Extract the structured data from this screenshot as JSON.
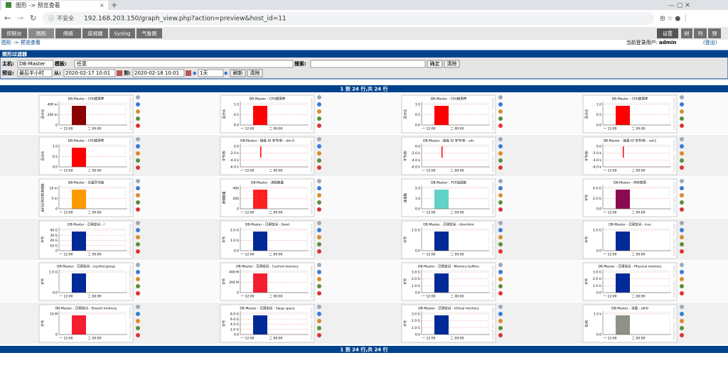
{
  "browser": {
    "tab_title": "图形 -> 预览查看",
    "insecure": "不安全",
    "url": "192.168.203.150/graph_view.php?action=preview&host_id=11"
  },
  "nav": {
    "tabs": [
      "控制台",
      "图形",
      "阈值",
      "监视器",
      "Syslog",
      "气象图"
    ],
    "right_tabs": [
      "设置",
      "树",
      "列",
      "预"
    ]
  },
  "breadcrumb": {
    "path": "图形 -> 预览查看",
    "user_label": "当前登录用户:",
    "user": "admin",
    "logout": "(登出)"
  },
  "filter": {
    "title": "图形过滤器",
    "host_label": "主机:",
    "host": "DB-Master",
    "template_label": "模板:",
    "template": "任意",
    "search_label": "搜索:",
    "go": "确定",
    "clear": "清除",
    "preset_label": "预设:",
    "preset": "最后半小时",
    "from_label": "从:",
    "from": "2020-02-17 10:01",
    "to_label": "到:",
    "to": "2020-02-18 10:01",
    "span": "1天",
    "refresh": "刷新",
    "clear2": "清除"
  },
  "pager": "1 到 24 行,共 24 行",
  "xticks": [
    "一 12:00",
    "二 00:00"
  ],
  "watermark": "RRDTOOL / TOBI OETIKER",
  "graphs": [
    {
      "title": "DB-Master - CPU使用率",
      "ylabel": "百分比",
      "yticks": [
        "400 m",
        "200 m",
        "0"
      ],
      "color": "#8b0000"
    },
    {
      "title": "DB-Master - CPU使用率",
      "ylabel": "百分比",
      "yticks": [
        "1.0",
        "0.5",
        "0.0"
      ],
      "color": "#ff0000"
    },
    {
      "title": "DB-Master - CPU使用率",
      "ylabel": "百分比",
      "yticks": [
        "1.0",
        "0.5",
        "0.0"
      ],
      "color": "#ff0000"
    },
    {
      "title": "DB-Master - CPU使用率",
      "ylabel": "百分比",
      "yticks": [
        "1.0",
        "0.5",
        "0.0"
      ],
      "color": "#ff0000"
    },
    {
      "title": "DB-Master - CPU使用率",
      "ylabel": "百分比",
      "yticks": [
        "1.0",
        "0.5",
        "0.0"
      ],
      "color": "#ff0000"
    },
    {
      "title": "DB-Master - 磁盘 IO 字节/秒 - dm-0",
      "ylabel": "字节/秒",
      "yticks": [
        "0.0",
        "-2.0 k",
        "-4.0 k",
        "-6.0 k"
      ],
      "color": "#ff0000"
    },
    {
      "title": "DB-Master - 磁盘 IO 字节/秒 - sdc",
      "ylabel": "字节/秒",
      "yticks": [
        "0.0",
        "-2.0 k",
        "-4.0 k",
        "-6.0 k"
      ],
      "color": "#ff0000"
    },
    {
      "title": "DB-Master - 磁盘 IO 字节/秒 - sdc1",
      "ylabel": "字节/秒",
      "yticks": [
        "0.0",
        "-2.0 k",
        "-4.0 k",
        "-6.0 k"
      ],
      "color": "#ff0000"
    },
    {
      "title": "DB-Master - 负载平均值",
      "ylabel": "运行队列中的进程数",
      "yticks": [
        "10 m",
        "5 m",
        "0"
      ],
      "color": "#ff9900"
    },
    {
      "title": "DB-Master - 进程数量",
      "ylabel": "进程数量",
      "yticks": [
        "400",
        "200",
        "0"
      ],
      "color": "#ff2020"
    },
    {
      "title": "DB-Master - TCP连接数",
      "ylabel": "连接数",
      "yticks": [
        "2.0",
        "1.0",
        "0.0"
      ],
      "color": "#5fd3c7"
    },
    {
      "title": "DB-Master - 内存使用",
      "ylabel": "字节",
      "yticks": [
        "4.0 G",
        "2.0 G",
        "0.0"
      ],
      "color": "#8b0a50"
    },
    {
      "title": "DB-Master - 已用空间 - /",
      "ylabel": "字节",
      "yticks": [
        "40 G",
        "30 G",
        "20 G",
        "10 G",
        "0"
      ],
      "color": "#002a97"
    },
    {
      "title": "DB-Master - 已用空间 - /boot",
      "ylabel": "字节",
      "yticks": [
        "2.0 G",
        "1.0 G",
        "0.0"
      ],
      "color": "#002a97"
    },
    {
      "title": "DB-Master - 已用空间 - /dev/shm",
      "ylabel": "字节",
      "yticks": [
        "1.0 G",
        "0.0"
      ],
      "color": "#002a97"
    },
    {
      "title": "DB-Master - 已用空间 - /run",
      "ylabel": "字节",
      "yticks": [
        "1.0 G",
        "0.0"
      ],
      "color": "#002a97"
    },
    {
      "title": "DB-Master - 已用空间 - /sys/fs/cgroup",
      "ylabel": "字节",
      "yticks": [
        "1.0 G",
        "0.0"
      ],
      "color": "#002a97"
    },
    {
      "title": "DB-Master - 已用空间 - Cached memory",
      "ylabel": "字节",
      "yticks": [
        "400 M",
        "200 M",
        "0"
      ],
      "color": "#f51d30"
    },
    {
      "title": "DB-Master - 已用空间 - Memory buffers",
      "ylabel": "字节",
      "yticks": [
        "3.0 G",
        "2.0 G",
        "1.0 G",
        "0.0"
      ],
      "color": "#002a97"
    },
    {
      "title": "DB-Master - 已用空间 - Physical memory",
      "ylabel": "字节",
      "yticks": [
        "3.0 G",
        "2.0 G",
        "1.0 G",
        "0.0"
      ],
      "color": "#002a97"
    },
    {
      "title": "DB-Master - 已用空间 - Shared memory",
      "ylabel": "字节",
      "yticks": [
        "10 M",
        "0"
      ],
      "color": "#f51d30"
    },
    {
      "title": "DB-Master - 已用空间 - Swap space",
      "ylabel": "字节",
      "yticks": [
        "8.0 G",
        "6.0 G",
        "4.0 G",
        "2.0 G",
        "0.0"
      ],
      "color": "#002a97"
    },
    {
      "title": "DB-Master - 已用空间 - Virtual memory",
      "ylabel": "字节",
      "yticks": [
        "3.0 G",
        "2.0 G",
        "1.0 G",
        "0.0"
      ],
      "color": "#002a97"
    },
    {
      "title": "DB-Master - 流量 - eth0",
      "ylabel": "位/秒",
      "yticks": [
        "1.0 k",
        "0.0"
      ],
      "color": "#8f9286"
    }
  ]
}
